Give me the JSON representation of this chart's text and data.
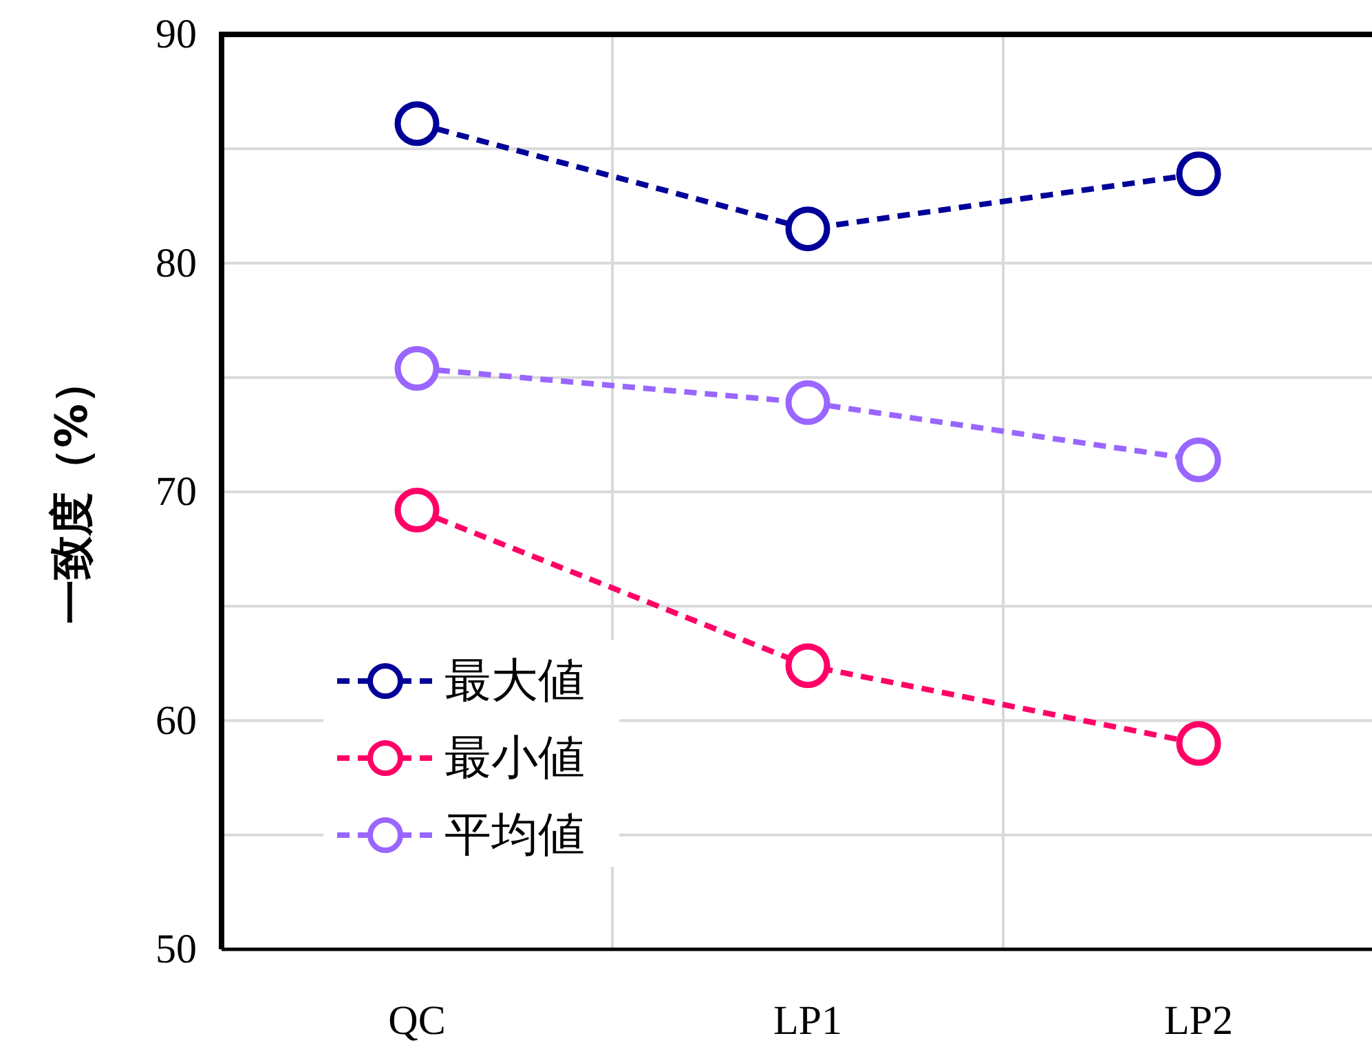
{
  "chart_data": {
    "type": "line",
    "ylabel": "一致度（%）",
    "categories": [
      "QC",
      "LP1",
      "LP2"
    ],
    "series": [
      {
        "name": "最大値",
        "color": "#000099",
        "values": [
          86.1,
          81.5,
          83.9
        ]
      },
      {
        "name": "最小値",
        "color": "#ff0066",
        "values": [
          69.2,
          62.4,
          59.0
        ]
      },
      {
        "name": "平均値",
        "color": "#9966ff",
        "values": [
          75.4,
          73.9,
          71.4
        ]
      }
    ],
    "ylim": [
      50,
      90
    ],
    "yticks": [
      50,
      {
        "value": 55,
        "label": null
      },
      60,
      {
        "value": 65,
        "label": null
      },
      70,
      {
        "value": 75,
        "label": null
      },
      80,
      {
        "value": 85,
        "label": null
      },
      90
    ],
    "grid": true,
    "legend": "bottom left",
    "marker": "circle",
    "line_style": "dashed"
  }
}
